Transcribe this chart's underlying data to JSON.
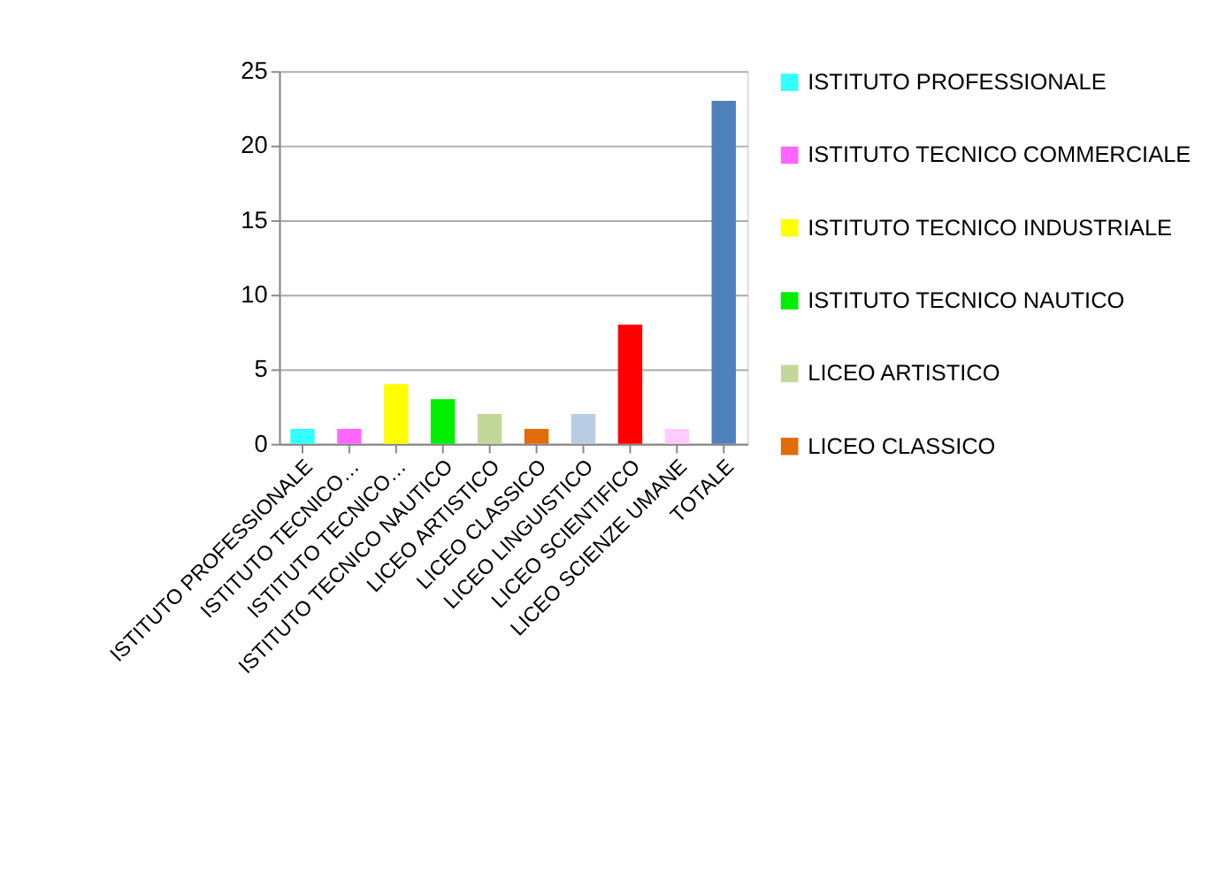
{
  "chart_data": {
    "type": "bar",
    "categories": [
      "ISTITUTO PROFESSIONALE",
      "ISTITUTO TECNICO…",
      "ISTITUTO TECNICO…",
      "ISTITUTO TECNICO NAUTICO",
      "LICEO ARTISTICO",
      "LICEO CLASSICO",
      "LICEO LINGUISTICO",
      "LICEO SCIENTIFICO",
      "LICEO SCIENZE UMANE",
      "TOTALE"
    ],
    "series": [
      {
        "name": "ISTITUTO PROFESSIONALE",
        "color": "#33ffff",
        "values": [
          1,
          null,
          null,
          null,
          null,
          null,
          null,
          null,
          null,
          null
        ]
      },
      {
        "name": "ISTITUTO TECNICO COMMERCIALE",
        "color": "#ff66ff",
        "values": [
          null,
          1,
          null,
          null,
          null,
          null,
          null,
          null,
          null,
          null
        ]
      },
      {
        "name": "ISTITUTO TECNICO INDUSTRIALE",
        "color": "#ffff00",
        "values": [
          null,
          null,
          4,
          null,
          null,
          null,
          null,
          null,
          null,
          null
        ]
      },
      {
        "name": "ISTITUTO TECNICO NAUTICO",
        "color": "#00ee00",
        "values": [
          null,
          null,
          null,
          3,
          null,
          null,
          null,
          null,
          null,
          null
        ]
      },
      {
        "name": "LICEO ARTISTICO",
        "color": "#c4d79b",
        "values": [
          null,
          null,
          null,
          null,
          2,
          null,
          null,
          null,
          null,
          null
        ]
      },
      {
        "name": "LICEO CLASSICO",
        "color": "#e26b0a",
        "values": [
          null,
          null,
          null,
          null,
          null,
          1,
          null,
          null,
          null,
          null
        ]
      },
      {
        "color": "#b8cce4",
        "values": [
          null,
          null,
          null,
          null,
          null,
          null,
          2,
          null,
          null,
          null
        ]
      },
      {
        "color": "#ff0000",
        "values": [
          null,
          null,
          null,
          null,
          null,
          null,
          null,
          8,
          null,
          null
        ]
      },
      {
        "color": "#ffccff",
        "values": [
          null,
          null,
          null,
          null,
          null,
          null,
          null,
          null,
          1,
          null
        ]
      },
      {
        "color": "#4f81bd",
        "values": [
          null,
          null,
          null,
          null,
          null,
          null,
          null,
          null,
          null,
          23
        ]
      }
    ],
    "ylim": [
      0,
      25
    ],
    "yticks": [
      0,
      5,
      10,
      15,
      20,
      25
    ],
    "grid": "y",
    "legend": "right"
  }
}
